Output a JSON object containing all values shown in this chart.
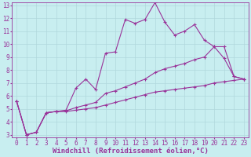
{
  "title": "",
  "xlabel": "Windchill (Refroidissement éolien,°C)",
  "xlim": [
    -0.5,
    23.5
  ],
  "ylim": [
    2.8,
    13.2
  ],
  "xticks": [
    0,
    1,
    2,
    3,
    4,
    5,
    6,
    7,
    8,
    9,
    10,
    11,
    12,
    13,
    14,
    15,
    16,
    17,
    18,
    19,
    20,
    21,
    22,
    23
  ],
  "yticks": [
    3,
    4,
    5,
    6,
    7,
    8,
    9,
    10,
    11,
    12,
    13
  ],
  "bg_color": "#c8eef0",
  "grid_color": "#b0d8dc",
  "line_color": "#993399",
  "line1_y": [
    5.6,
    3.0,
    3.2,
    4.7,
    4.8,
    4.9,
    6.6,
    7.3,
    6.5,
    9.3,
    9.4,
    11.9,
    11.6,
    11.9,
    13.2,
    11.7,
    10.7,
    11.0,
    11.5,
    10.3,
    9.8,
    8.9,
    7.5,
    7.3
  ],
  "line2_y": [
    5.6,
    3.0,
    3.2,
    4.7,
    4.8,
    4.85,
    5.1,
    5.3,
    5.5,
    6.2,
    6.4,
    6.7,
    7.0,
    7.3,
    7.8,
    8.1,
    8.3,
    8.5,
    8.8,
    9.0,
    9.8,
    9.8,
    7.5,
    7.3
  ],
  "line3_y": [
    5.6,
    3.0,
    3.2,
    4.7,
    4.8,
    4.8,
    4.9,
    5.0,
    5.1,
    5.3,
    5.5,
    5.7,
    5.9,
    6.1,
    6.3,
    6.4,
    6.5,
    6.6,
    6.7,
    6.8,
    7.0,
    7.1,
    7.2,
    7.3
  ],
  "font_family": "monospace",
  "tick_fontsize": 5.5,
  "xlabel_fontsize": 6.5
}
